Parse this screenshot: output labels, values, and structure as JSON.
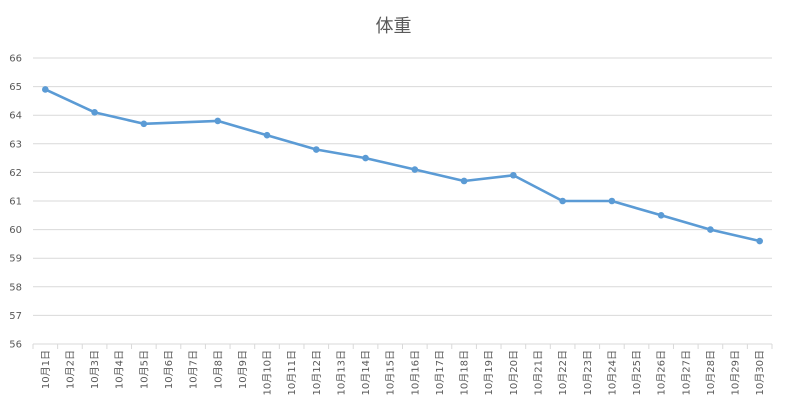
{
  "chart_data": {
    "type": "line",
    "title": "体重",
    "xlabel": "",
    "ylabel": "",
    "ylim": [
      56,
      66
    ],
    "yticks": [
      56,
      57,
      58,
      59,
      60,
      61,
      62,
      63,
      64,
      65,
      66
    ],
    "grid": "horizontal",
    "legend": "none",
    "categories": [
      "10月1日",
      "10月2日",
      "10月3日",
      "10月4日",
      "10月5日",
      "10月6日",
      "10月7日",
      "10月8日",
      "10月9日",
      "10月10日",
      "10月11日",
      "10月12日",
      "10月13日",
      "10月14日",
      "10月15日",
      "10月16日",
      "10月17日",
      "10月18日",
      "10月19日",
      "10月20日",
      "10月21日",
      "10月22日",
      "10月23日",
      "10月24日",
      "10月25日",
      "10月26日",
      "10月27日",
      "10月28日",
      "10月29日",
      "10月30日"
    ],
    "series": [
      {
        "color": "#5b9bd5",
        "points": [
          {
            "x": "10月1日",
            "y": 64.9
          },
          {
            "x": "10月3日",
            "y": 64.1
          },
          {
            "x": "10月5日",
            "y": 63.7
          },
          {
            "x": "10月8日",
            "y": 63.8
          },
          {
            "x": "10月10日",
            "y": 63.3
          },
          {
            "x": "10月12日",
            "y": 62.8
          },
          {
            "x": "10月14日",
            "y": 62.5
          },
          {
            "x": "10月16日",
            "y": 62.1
          },
          {
            "x": "10月18日",
            "y": 61.7
          },
          {
            "x": "10月20日",
            "y": 61.9
          },
          {
            "x": "10月22日",
            "y": 61.0
          },
          {
            "x": "10月24日",
            "y": 61.0
          },
          {
            "x": "10月26日",
            "y": 60.5
          },
          {
            "x": "10月28日",
            "y": 60.0
          },
          {
            "x": "10月30日",
            "y": 59.6
          }
        ]
      }
    ],
    "colors": {
      "gridline": "#d9d9d9",
      "axis_text": "#595959",
      "series": "#5b9bd5"
    }
  }
}
